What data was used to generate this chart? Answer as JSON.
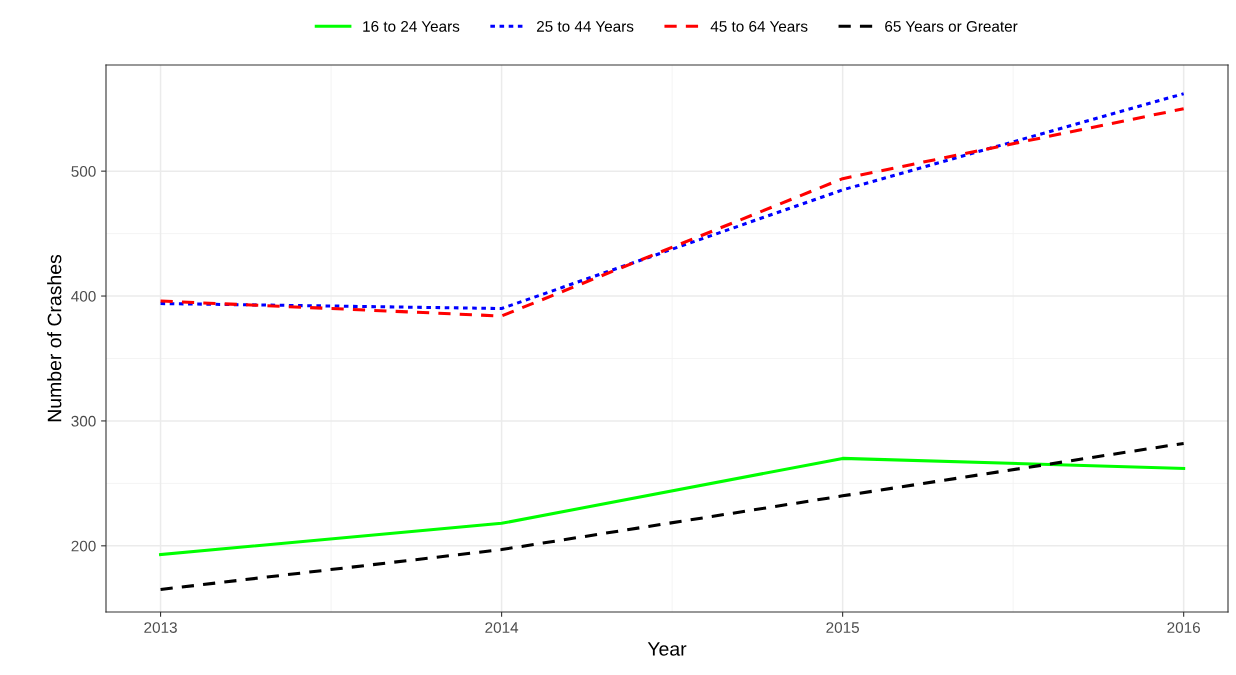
{
  "chart_data": {
    "type": "line",
    "xlabel": "Year",
    "ylabel": "Number of Crashes",
    "x": [
      2013,
      2014,
      2015,
      2016
    ],
    "series": [
      {
        "name": "16 to 24 Years",
        "color": "#00ff00",
        "line_style": "solid",
        "values": [
          193,
          218,
          270,
          262
        ]
      },
      {
        "name": "25 to 44 Years",
        "color": "#0000ff",
        "line_style": "dotted",
        "values": [
          394,
          390,
          485,
          562
        ]
      },
      {
        "name": "45 to 64 Years",
        "color": "#ff0000",
        "line_style": "dashed",
        "values": [
          396,
          384,
          494,
          550
        ]
      },
      {
        "name": "65 Years or Greater",
        "color": "#000000",
        "line_style": "dashed",
        "values": [
          165,
          197,
          240,
          282
        ]
      }
    ],
    "xlim": [
      2012.84,
      2016.13
    ],
    "ylim": [
      147,
      585
    ],
    "xticks": [
      2013,
      2014,
      2015,
      2016
    ],
    "yticks": [
      200,
      300,
      400,
      500
    ],
    "grid": true,
    "legend": "top",
    "marker": "none"
  }
}
